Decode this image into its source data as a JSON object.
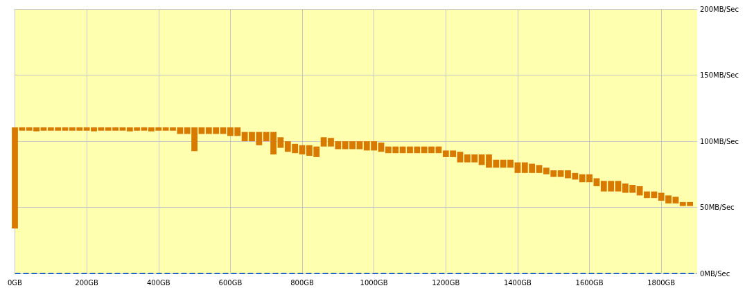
{
  "chart_data": {
    "type": "bar",
    "x": [
      0,
      20,
      40,
      60,
      80,
      100,
      120,
      140,
      160,
      180,
      200,
      220,
      240,
      260,
      280,
      300,
      320,
      340,
      360,
      380,
      400,
      420,
      440,
      460,
      480,
      500,
      520,
      540,
      560,
      580,
      600,
      620,
      640,
      660,
      680,
      700,
      720,
      740,
      760,
      780,
      800,
      820,
      840,
      860,
      880,
      900,
      920,
      940,
      960,
      980,
      1000,
      1020,
      1040,
      1060,
      1080,
      1100,
      1120,
      1140,
      1160,
      1180,
      1200,
      1220,
      1240,
      1260,
      1280,
      1300,
      1320,
      1340,
      1360,
      1380,
      1400,
      1420,
      1440,
      1460,
      1480,
      1500,
      1520,
      1540,
      1560,
      1580,
      1600,
      1620,
      1640,
      1660,
      1680,
      1700,
      1720,
      1740,
      1760,
      1780,
      1800,
      1820,
      1840,
      1860,
      1880
    ],
    "base": [
      34,
      108,
      108,
      107.5,
      108,
      108,
      108,
      108,
      108,
      108,
      108,
      107.5,
      108,
      108,
      108,
      108,
      107.5,
      108,
      108,
      107.5,
      108,
      108,
      108,
      105.5,
      105.5,
      92.5,
      105.5,
      105.5,
      105.5,
      105.5,
      104,
      104,
      100,
      100,
      97,
      100,
      90,
      95,
      92,
      91,
      90,
      89,
      88,
      96,
      96,
      94,
      94,
      94,
      94,
      93,
      93,
      92,
      91,
      91,
      91,
      91,
      91,
      91,
      91,
      91,
      88,
      88,
      84,
      84,
      84,
      82,
      80,
      80,
      80,
      80,
      76,
      76,
      76,
      76,
      75,
      73,
      73,
      72,
      71,
      69,
      69,
      66,
      62,
      62,
      62,
      61,
      61,
      59,
      57,
      57,
      55,
      53,
      53,
      51,
      51
    ],
    "values": [
      76.5,
      2.5,
      2.5,
      3,
      2.5,
      2.5,
      2.5,
      2.5,
      2.5,
      2.5,
      2.5,
      3,
      2.5,
      2.5,
      2.5,
      2.5,
      3,
      2.5,
      2.5,
      3,
      2.5,
      2.5,
      2.5,
      5,
      5,
      18,
      5,
      5,
      5,
      5,
      6.5,
      6.5,
      7,
      7,
      10,
      7,
      17,
      8,
      8,
      7,
      7,
      8,
      8,
      7,
      6.5,
      6,
      6,
      6,
      6,
      7,
      7,
      7,
      5,
      5,
      5,
      5,
      5,
      5,
      5,
      5,
      5,
      5,
      8,
      6,
      6,
      8,
      10,
      6,
      6,
      6,
      8,
      8,
      7,
      6,
      5,
      5,
      5,
      6,
      5,
      6,
      6,
      6,
      8,
      8,
      8,
      7,
      6,
      7,
      5,
      5,
      6,
      6,
      5,
      3,
      3
    ],
    "color": "#d97a00",
    "xlim": [
      0,
      1900
    ],
    "xticks": [
      {
        "value": 0,
        "label": "0GB"
      },
      {
        "value": 200,
        "label": "200GB"
      },
      {
        "value": 400,
        "label": "400GB"
      },
      {
        "value": 600,
        "label": "600GB"
      },
      {
        "value": 800,
        "label": "800GB"
      },
      {
        "value": 1000,
        "label": "1000GB"
      },
      {
        "value": 1200,
        "label": "1200GB"
      },
      {
        "value": 1400,
        "label": "1400GB"
      },
      {
        "value": 1600,
        "label": "1600GB"
      },
      {
        "value": 1800,
        "label": "1800GB"
      }
    ],
    "ylim": [
      0,
      200
    ],
    "yticks": [
      {
        "value": 0,
        "label": "0MB/Sec"
      },
      {
        "value": 50,
        "label": "50MB/Sec"
      },
      {
        "value": 100,
        "label": "100MB/Sec"
      },
      {
        "value": 150,
        "label": "150MB/Sec"
      },
      {
        "value": 200,
        "label": "200MB/Sec"
      }
    ],
    "ref_lines": [
      {
        "axis": "y",
        "value": 0,
        "color": "#2266cc",
        "line_style": "dashed"
      }
    ],
    "grid": true
  }
}
